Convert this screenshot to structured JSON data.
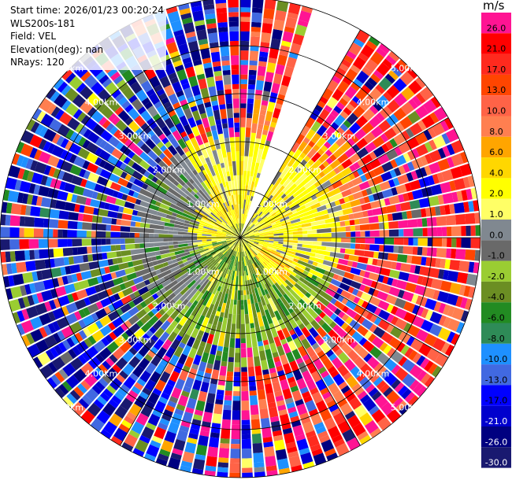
{
  "info": {
    "start_time": "Start time: 2026/01/23 00:20:24",
    "instrument": "WLS200s-181",
    "field": "Field: VEL",
    "elevation": "Elevation(deg): nan",
    "nrays": "NRays: 120"
  },
  "colorbar": {
    "unit": "m/s",
    "bins": [
      {
        "label": "26.0",
        "color": "#ff1493"
      },
      {
        "label": "21.0",
        "color": "#ff0000"
      },
      {
        "label": "17.0",
        "color": "#ff2a1e"
      },
      {
        "label": "13.0",
        "color": "#ff4500"
      },
      {
        "label": "10.0",
        "color": "#ff6347"
      },
      {
        "label": "8.0",
        "color": "#ff7f50"
      },
      {
        "label": "6.0",
        "color": "#ffa500"
      },
      {
        "label": "4.0",
        "color": "#ffd700"
      },
      {
        "label": "2.0",
        "color": "#ffff00"
      },
      {
        "label": "1.0",
        "color": "#ffff66"
      },
      {
        "label": "0.0",
        "color": "#808890"
      },
      {
        "label": "-1.0",
        "color": "#696969"
      },
      {
        "label": "-2.0",
        "color": "#9acd32"
      },
      {
        "label": "-4.0",
        "color": "#6b8e23"
      },
      {
        "label": "-6.0",
        "color": "#228b22"
      },
      {
        "label": "-8.0",
        "color": "#2e8b57"
      },
      {
        "label": "-10.0",
        "color": "#1e90ff"
      },
      {
        "label": "-13.0",
        "color": "#4169e1"
      },
      {
        "label": "-17.0",
        "color": "#0000ff"
      },
      {
        "label": "-21.0",
        "color": "#0000cd"
      },
      {
        "label": "-26.0",
        "color": "#000080"
      },
      {
        "label": "-30.0",
        "color": "#191970"
      }
    ]
  },
  "chart_data": {
    "type": "ppi",
    "field": "VEL",
    "units": "m/s",
    "nrays": 120,
    "max_range_km": 5.0,
    "range_rings_km": [
      1.0,
      2.0,
      3.0,
      4.0,
      5.0
    ],
    "range_ring_labels": [
      "1.00km",
      "2.00km",
      "3.00km",
      "4.00km",
      "5.00km"
    ],
    "value_limits": [
      -30.0,
      26.0
    ],
    "missing_sector_azimuth_deg": [
      18,
      30
    ],
    "near_field_pattern": "yellow (+1..+4 m/s) north and east, green/olive (-2..-6 m/s) south and west, gray (~0 m/s) west near 1-2 km",
    "far_field_pattern": "noisy; red/pink (+13..+26 m/s) dominant on east side, blue/navy (-17..-30 m/s) dominant on west side"
  }
}
